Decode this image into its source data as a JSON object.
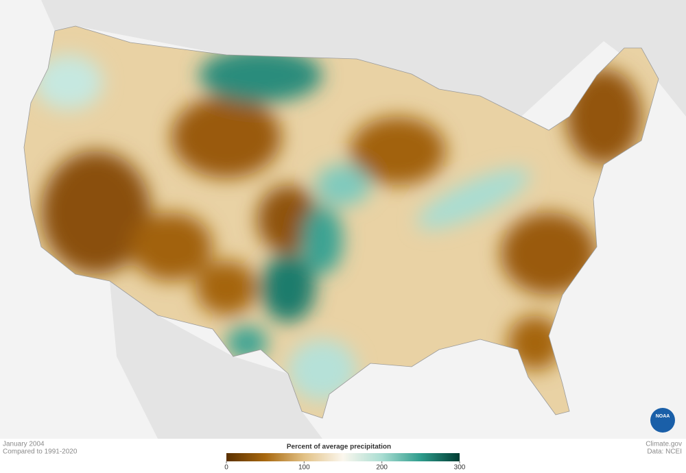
{
  "header": {
    "date": "January 2004",
    "baseline": "Compared to 1991-2020"
  },
  "legend": {
    "title": "Percent of average precipitation",
    "range": [
      0,
      300
    ],
    "ticks": [
      0,
      100,
      200,
      300
    ],
    "colors": [
      "#5a3000",
      "#a8680f",
      "#e2c185",
      "#fbf7ee",
      "#a9ddd2",
      "#2e9c8c",
      "#003c32"
    ]
  },
  "credits": {
    "site": "Climate.gov",
    "source": "Data: NCEI",
    "logo": "NOAA"
  }
}
